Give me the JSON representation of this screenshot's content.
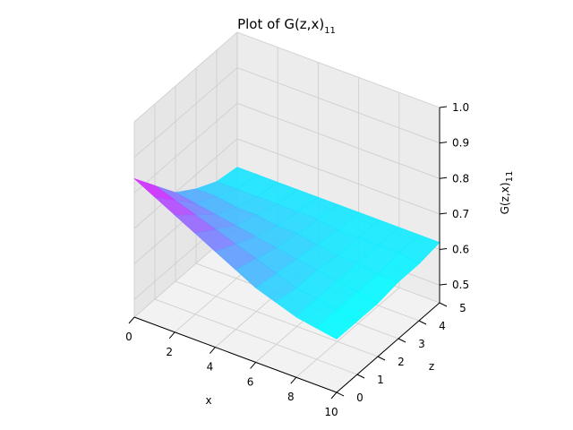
{
  "chart_data": {
    "type": "surface3d",
    "title": "Plot of G(z,x)",
    "title_subscript": "11",
    "xlabel": "x",
    "ylabel": "z",
    "zlabel": "G(z,x)",
    "zlabel_subscript": "11",
    "xlim": [
      0,
      10
    ],
    "ylim": [
      0,
      5
    ],
    "zlim": [
      0.45,
      1.0
    ],
    "x_ticks": [
      "0",
      "2",
      "4",
      "6",
      "8",
      "10"
    ],
    "y_ticks": [
      "0",
      "1",
      "2",
      "3",
      "4",
      "5"
    ],
    "z_ticks": [
      "0.5",
      "0.6",
      "0.7",
      "0.8",
      "0.9",
      "1.0"
    ],
    "colormap": "cool",
    "colormap_colors": [
      "#00ffff",
      "#ff00ff"
    ],
    "grid": true,
    "pane_color": "#f2f2f2",
    "surface": {
      "x": [
        0,
        1,
        2,
        3,
        4,
        5,
        6,
        7,
        8,
        9,
        10
      ],
      "z": [
        0,
        1,
        2,
        3,
        4,
        5
      ],
      "values": [
        [
          0.84,
          0.81,
          0.78,
          0.75,
          0.72,
          0.69,
          0.66,
          0.64,
          0.62,
          0.61,
          0.6
        ],
        [
          0.77,
          0.75,
          0.73,
          0.71,
          0.69,
          0.67,
          0.65,
          0.63,
          0.62,
          0.61,
          0.6
        ],
        [
          0.7,
          0.69,
          0.68,
          0.67,
          0.66,
          0.65,
          0.64,
          0.63,
          0.62,
          0.61,
          0.6
        ],
        [
          0.66,
          0.66,
          0.65,
          0.65,
          0.64,
          0.64,
          0.63,
          0.62,
          0.62,
          0.61,
          0.61
        ],
        [
          0.63,
          0.63,
          0.63,
          0.63,
          0.63,
          0.63,
          0.62,
          0.62,
          0.62,
          0.62,
          0.61
        ],
        [
          0.62,
          0.62,
          0.62,
          0.62,
          0.62,
          0.62,
          0.62,
          0.62,
          0.62,
          0.62,
          0.62
        ]
      ]
    }
  }
}
